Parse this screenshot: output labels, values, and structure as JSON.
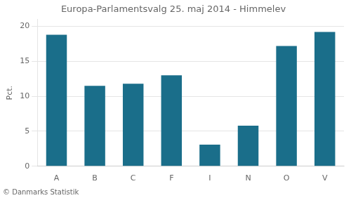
{
  "chart_data": {
    "type": "bar",
    "title": "Europa-Parlamentsvalg 25. maj 2014 - Himmelev",
    "ylabel": "Pct.",
    "footer": "© Danmarks Statistik",
    "categories": [
      "A",
      "B",
      "C",
      "F",
      "I",
      "N",
      "O",
      "V"
    ],
    "values": [
      18.8,
      11.5,
      11.8,
      13.0,
      3.1,
      5.8,
      17.2,
      19.2
    ],
    "color": "#1a6e8a",
    "ylim": [
      0,
      21
    ],
    "yticks": [
      0,
      5,
      10,
      15,
      20
    ],
    "grid": true
  }
}
